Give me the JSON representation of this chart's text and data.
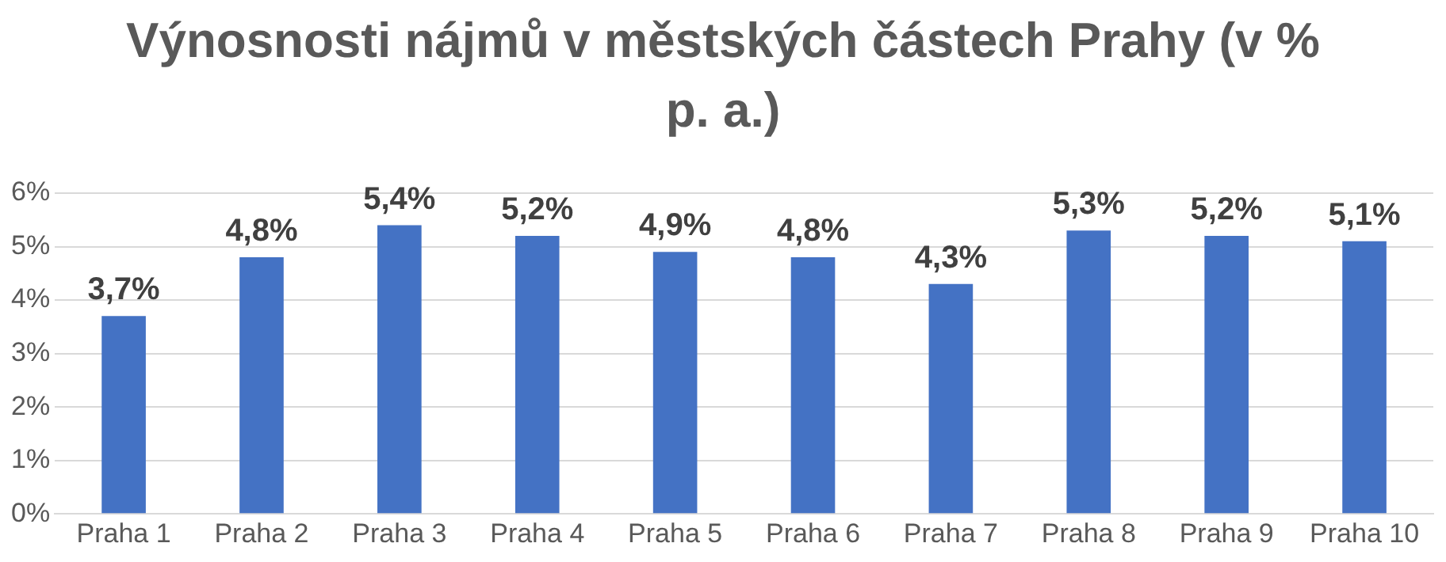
{
  "chart_data": {
    "type": "bar",
    "title": "Výnosnosti nájmů v městských částech Prahy (v % p. a.)",
    "categories": [
      "Praha 1",
      "Praha 2",
      "Praha 3",
      "Praha 4",
      "Praha 5",
      "Praha 6",
      "Praha 7",
      "Praha 8",
      "Praha 9",
      "Praha 10"
    ],
    "values": [
      3.7,
      4.8,
      5.4,
      5.2,
      4.9,
      4.8,
      4.3,
      5.3,
      5.2,
      5.1
    ],
    "value_labels": [
      "3,7%",
      "4,8%",
      "5,4%",
      "5,2%",
      "4,9%",
      "4,8%",
      "4,3%",
      "5,3%",
      "5,2%",
      "5,1%"
    ],
    "color": "#4472c4",
    "ylim": [
      0,
      6
    ],
    "yticks": [
      {
        "value": 0,
        "label": "0%"
      },
      {
        "value": 1,
        "label": "1%"
      },
      {
        "value": 2,
        "label": "2%"
      },
      {
        "value": 3,
        "label": "3%"
      },
      {
        "value": 4,
        "label": "4%"
      },
      {
        "value": 5,
        "label": "5%"
      },
      {
        "value": 6,
        "label": "6%"
      }
    ],
    "grid": "y",
    "legend": false
  }
}
